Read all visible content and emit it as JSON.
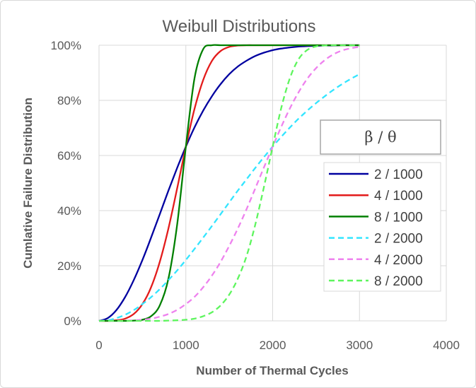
{
  "chart_data": {
    "type": "line",
    "title": "Weibull Distributions",
    "xlabel": "Number of Thermal Cycles",
    "ylabel": "Cumlative Failure Distribution",
    "xlim": [
      0,
      4000
    ],
    "ylim": [
      0,
      100
    ],
    "xticks": [
      0,
      1000,
      2000,
      3000,
      4000
    ],
    "yticks": [
      "0%",
      "20%",
      "40%",
      "60%",
      "80%",
      "100%"
    ],
    "grid": "vertical and horizontal",
    "legend": {
      "title": "β / θ",
      "placement": "right"
    },
    "x": [
      0,
      100,
      200,
      300,
      400,
      500,
      600,
      700,
      800,
      900,
      1000,
      1100,
      1200,
      1300,
      1400,
      1500,
      1600,
      1700,
      1800,
      1900,
      2000,
      2100,
      2200,
      2300,
      2400,
      2500,
      2600,
      2700,
      2800,
      2900,
      3000
    ],
    "series": [
      {
        "name": "2 / 1000",
        "color": "#0000a0",
        "dash": false,
        "values": [
          0,
          1,
          3.9,
          8.6,
          14.8,
          22.1,
          30.2,
          38.7,
          47.3,
          55.5,
          63.2,
          70.2,
          76.3,
          81.5,
          85.9,
          89.5,
          92.3,
          94.4,
          96.1,
          97.3,
          98.2,
          98.8,
          99.2,
          99.5,
          99.7,
          99.8,
          99.9,
          99.9,
          100,
          100,
          100
        ]
      },
      {
        "name": "4 / 1000",
        "color": "#e31b1b",
        "dash": false,
        "values": [
          0,
          0,
          0.2,
          0.8,
          2.5,
          6.1,
          12.2,
          21.4,
          33.6,
          48.1,
          63.2,
          76.9,
          87.4,
          94.3,
          97.9,
          99.4,
          99.9,
          100,
          100,
          100,
          100,
          100,
          100,
          100,
          100,
          100,
          100,
          100,
          100,
          100,
          100
        ]
      },
      {
        "name": "8 / 1000",
        "color": "#008000",
        "dash": false,
        "values": [
          0,
          0,
          0,
          0,
          0.1,
          0.4,
          1.7,
          5.6,
          15.4,
          35,
          63.2,
          88,
          98.6,
          100,
          100,
          100,
          100,
          100,
          100,
          100,
          100,
          100,
          100,
          100,
          100,
          100,
          100,
          100,
          100,
          100,
          100
        ]
      },
      {
        "name": "2 / 2000",
        "color": "#33e5ff",
        "dash": true,
        "values": [
          0,
          0.2,
          1,
          2.2,
          3.9,
          6.1,
          8.6,
          11.5,
          14.8,
          18.3,
          22.1,
          26.1,
          30.2,
          34.4,
          38.7,
          43,
          47.3,
          51.4,
          55.5,
          59.4,
          63.2,
          66.8,
          70.2,
          73.4,
          76.3,
          79,
          81.5,
          83.8,
          85.9,
          87.8,
          89.5
        ]
      },
      {
        "name": "4 / 2000",
        "color": "#ee82ee",
        "dash": true,
        "values": [
          0,
          0,
          0,
          0.1,
          0.2,
          0.4,
          0.8,
          1.5,
          2.5,
          4,
          6.1,
          8.7,
          12.2,
          16.4,
          21.4,
          27.2,
          33.6,
          40.6,
          48.1,
          55.7,
          63.2,
          70.5,
          77.2,
          83,
          87.9,
          91.7,
          94.6,
          96.7,
          98.1,
          98.9,
          99.4
        ]
      },
      {
        "name": "8 / 2000",
        "color": "#5ef55e",
        "dash": true,
        "values": [
          0,
          0,
          0,
          0,
          0,
          0,
          0,
          0,
          0.1,
          0.2,
          0.4,
          0.8,
          1.7,
          3.1,
          5.6,
          9.5,
          15.4,
          23.6,
          35,
          48.6,
          63.2,
          77.4,
          88.2,
          95,
          98.3,
          99.6,
          99.9,
          100,
          100,
          100,
          100
        ]
      }
    ]
  }
}
